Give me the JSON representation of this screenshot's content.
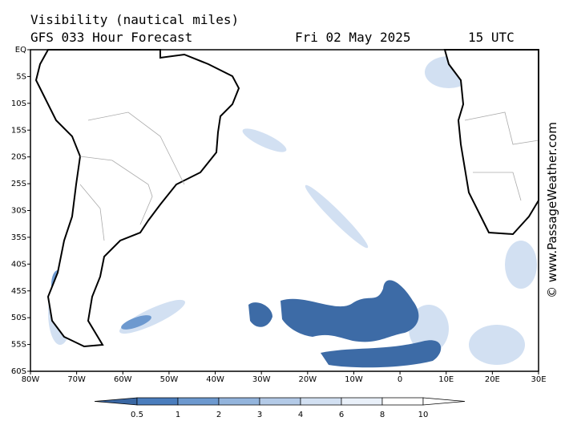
{
  "title": "Visibility (nautical miles)",
  "subtitle": "GFS 033 Hour Forecast",
  "date": "Fri 02 May 2025",
  "time": "15 UTC",
  "watermark": "© www.PassageWeather.com",
  "lat_labels": [
    "EQ",
    "5S",
    "10S",
    "15S",
    "20S",
    "25S",
    "30S",
    "35S",
    "40S",
    "45S",
    "50S",
    "55S",
    "60S"
  ],
  "lon_labels": [
    "80W",
    "70W",
    "60W",
    "50W",
    "40W",
    "30W",
    "20W",
    "10W",
    "0",
    "10E",
    "20E",
    "30E"
  ],
  "colorbar": {
    "ticks": [
      0.5,
      1,
      2,
      3,
      4,
      6,
      8,
      10
    ],
    "colors": [
      "#3a67a3",
      "#4a7dbd",
      "#6d99cf",
      "#93b4dc",
      "#b3cae7",
      "#d2e0f2",
      "#e9f0f9",
      "#ffffff",
      "#ffffff"
    ]
  }
}
